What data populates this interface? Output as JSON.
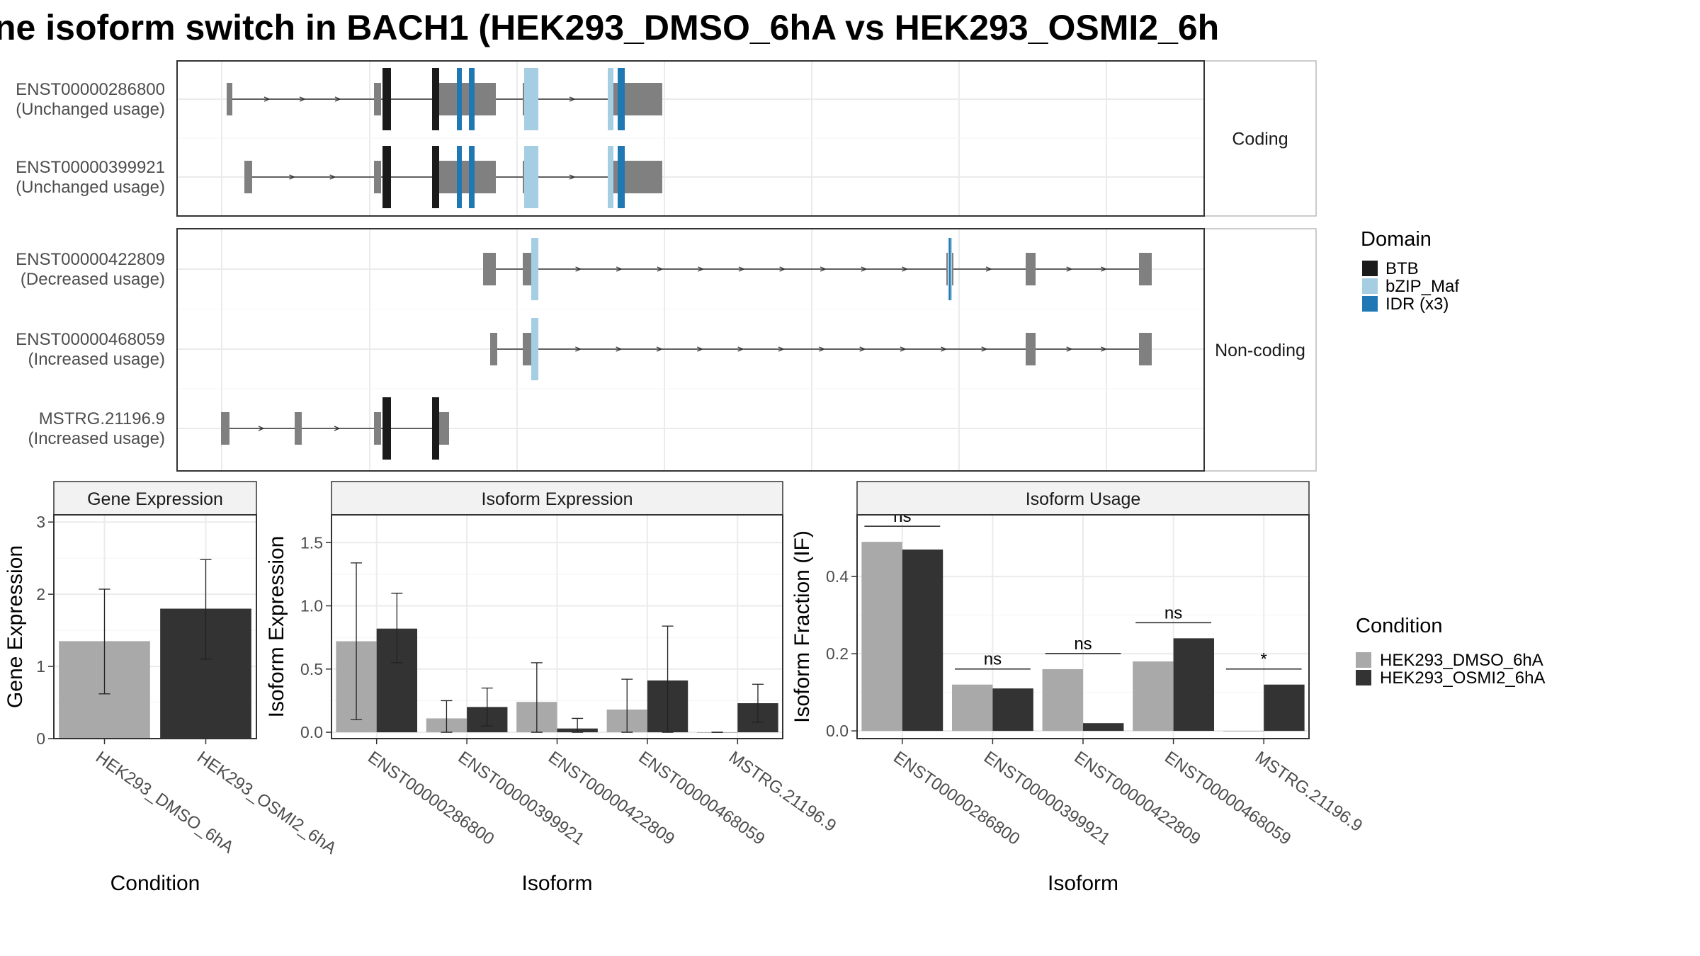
{
  "title": "ne isoform switch in BACH1 (HEK293_DMSO_6hA vs HEK293_OSMI2_6h",
  "colors": {
    "exon": "#808080",
    "BTB": "#1a1a1a",
    "bZIP_Maf": "#a6cee3",
    "IDR": "#1f78b4",
    "cond1": "#a9a9a9",
    "cond2": "#333333",
    "panel_strip": "#f2f2f2",
    "grid": "#ebebeb"
  },
  "structure": {
    "facets": [
      {
        "label": "Coding",
        "transcripts": [
          {
            "id": "ENST00000286800",
            "usage": "(Unchanged usage)",
            "exons": [
              [
                320,
                328
              ],
              [
                528,
                538
              ],
              [
                548,
                552
              ],
              [
                610,
                700
              ],
              [
                738,
                760
              ],
              [
                858,
                885
              ],
              [
                885,
                935
              ]
            ],
            "domains": [
              {
                "type": "BTB",
                "x": [
                  540,
                  552
                ]
              },
              {
                "type": "BTB",
                "x": [
                  610,
                  620
                ]
              },
              {
                "type": "IDR",
                "x": [
                  645,
                  652
                ]
              },
              {
                "type": "IDR",
                "x": [
                  662,
                  670
                ]
              },
              {
                "type": "bZIP_Maf",
                "x": [
                  740,
                  760
                ]
              },
              {
                "type": "bZIP_Maf",
                "x": [
                  858,
                  866
                ]
              },
              {
                "type": "IDR",
                "x": [
                  872,
                  882
                ]
              }
            ]
          },
          {
            "id": "ENST00000399921",
            "usage": "(Unchanged usage)",
            "exons": [
              [
                345,
                356
              ],
              [
                528,
                538
              ],
              [
                548,
                552
              ],
              [
                610,
                700
              ],
              [
                738,
                760
              ],
              [
                858,
                885
              ],
              [
                885,
                935
              ]
            ],
            "domains": [
              {
                "type": "BTB",
                "x": [
                  540,
                  552
                ]
              },
              {
                "type": "BTB",
                "x": [
                  610,
                  620
                ]
              },
              {
                "type": "IDR",
                "x": [
                  645,
                  652
                ]
              },
              {
                "type": "IDR",
                "x": [
                  662,
                  670
                ]
              },
              {
                "type": "bZIP_Maf",
                "x": [
                  740,
                  760
                ]
              },
              {
                "type": "bZIP_Maf",
                "x": [
                  858,
                  866
                ]
              },
              {
                "type": "IDR",
                "x": [
                  872,
                  882
                ]
              }
            ]
          }
        ]
      },
      {
        "label": "Non-coding",
        "transcripts": [
          {
            "id": "ENST00000422809",
            "usage": "(Decreased usage)",
            "exons": [
              [
                682,
                700
              ],
              [
                738,
                760
              ],
              [
                1336,
                1346
              ],
              [
                1448,
                1462
              ],
              [
                1608,
                1626
              ]
            ],
            "domains": [
              {
                "type": "bZIP_Maf",
                "x": [
                  750,
                  760
                ]
              },
              {
                "type": "bZIP_Maf",
                "x": [
                  1338,
                  1344
                ]
              },
              {
                "type": "IDR",
                "x": [
                  1340,
                  1342
                ]
              }
            ]
          },
          {
            "id": "ENST00000468059",
            "usage": "(Increased usage)",
            "exons": [
              [
                692,
                702
              ],
              [
                738,
                760
              ],
              [
                1448,
                1462
              ],
              [
                1608,
                1626
              ]
            ],
            "domains": [
              {
                "type": "bZIP_Maf",
                "x": [
                  750,
                  760
                ]
              }
            ]
          },
          {
            "id": "MSTRG.21196.9",
            "usage": "(Increased usage)",
            "exons": [
              [
                312,
                324
              ],
              [
                416,
                426
              ],
              [
                528,
                538
              ],
              [
                548,
                552
              ],
              [
                610,
                634
              ]
            ],
            "domains": [
              {
                "type": "BTB",
                "x": [
                  540,
                  552
                ]
              },
              {
                "type": "BTB",
                "x": [
                  610,
                  620
                ]
              }
            ]
          }
        ]
      }
    ]
  },
  "domain_legend": {
    "title": "Domain",
    "items": [
      {
        "key": "BTB",
        "label": "BTB"
      },
      {
        "key": "bZIP_Maf",
        "label": "bZIP_Maf"
      },
      {
        "key": "IDR",
        "label": "IDR (x3)"
      }
    ]
  },
  "condition_legend": {
    "title": "Condition",
    "items": [
      "HEK293_DMSO_6hA",
      "HEK293_OSMI2_6hA"
    ]
  },
  "chart_data": [
    {
      "type": "bar",
      "title": "Gene Expression",
      "xlabel": "Condition",
      "ylabel": "Gene Expression",
      "categories": [
        "HEK293_DMSO_6hA",
        "HEK293_OSMI2_6hA"
      ],
      "values": [
        1.35,
        1.8
      ],
      "errors": [
        [
          0.62,
          2.07
        ],
        [
          1.1,
          2.48
        ]
      ],
      "ylim": [
        0,
        3.1
      ],
      "yticks": [
        0,
        1,
        2,
        3
      ]
    },
    {
      "type": "bar",
      "title": "Isoform Expression",
      "xlabel": "Isoform",
      "ylabel": "Isoform Expression",
      "categories": [
        "ENST00000286800",
        "ENST00000399921",
        "ENST00000422809",
        "ENST00000468059",
        "MSTRG.21196.9"
      ],
      "series": [
        {
          "name": "HEK293_DMSO_6hA",
          "values": [
            0.72,
            0.11,
            0.24,
            0.18,
            0.0
          ],
          "errors": [
            [
              0.1,
              1.34
            ],
            [
              0.0,
              0.25
            ],
            [
              0.0,
              0.55
            ],
            [
              0.0,
              0.42
            ],
            [
              0.0,
              0.0
            ]
          ]
        },
        {
          "name": "HEK293_OSMI2_6hA",
          "values": [
            0.82,
            0.2,
            0.03,
            0.41,
            0.23
          ],
          "errors": [
            [
              0.55,
              1.1
            ],
            [
              0.05,
              0.35
            ],
            [
              0.0,
              0.11
            ],
            [
              0.0,
              0.84
            ],
            [
              0.08,
              0.38
            ]
          ]
        }
      ],
      "ylim": [
        -0.05,
        1.72
      ],
      "yticks": [
        0.0,
        0.5,
        1.0,
        1.5
      ]
    },
    {
      "type": "bar",
      "title": "Isoform Usage",
      "xlabel": "Isoform",
      "ylabel": "Isoform Fraction (IF)",
      "categories": [
        "ENST00000286800",
        "ENST00000399921",
        "ENST00000422809",
        "ENST00000468059",
        "MSTRG.21196.9"
      ],
      "series": [
        {
          "name": "HEK293_DMSO_6hA",
          "values": [
            0.49,
            0.12,
            0.16,
            0.18,
            0.0
          ]
        },
        {
          "name": "HEK293_OSMI2_6hA",
          "values": [
            0.47,
            0.11,
            0.02,
            0.24,
            0.12
          ]
        }
      ],
      "significance": [
        "ns",
        "ns",
        "ns",
        "ns",
        "*"
      ],
      "ylim": [
        -0.02,
        0.56
      ],
      "yticks": [
        0.0,
        0.2,
        0.4
      ]
    }
  ]
}
